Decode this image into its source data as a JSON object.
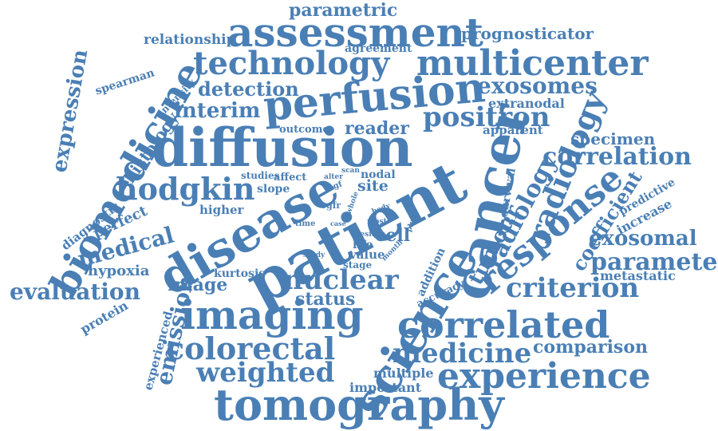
{
  "style": {
    "text_color": "#4a7fb5",
    "background": "#ffffff"
  },
  "words": [
    "parametric",
    "assessment",
    "prognosticator",
    "relationship",
    "agreement",
    "technology",
    "multicenter",
    "spearman",
    "intensity",
    "expression",
    "detection",
    "exosomes",
    "biomedicine",
    "perfusion",
    "interim",
    "extranodal",
    "positron",
    "radiology",
    "reader",
    "outcome",
    "apparent",
    "diffusion",
    "histology",
    "specimen",
    "correlation",
    "cancer",
    "hodgkin",
    "studies",
    "affect",
    "alter",
    "scan",
    "nodal",
    "site",
    "vegf",
    "slope",
    "survival",
    "whole",
    "radiology",
    "predictive",
    "diagnostic",
    "disease",
    "patient",
    "higher",
    "egfr",
    "body",
    "coefficient",
    "increase",
    "perfect",
    "medical",
    "time",
    "case",
    "lesion",
    "most",
    "plus",
    "tumour",
    "response",
    "exosomal",
    "cell",
    "life",
    "month",
    "value",
    "study",
    "stage",
    "addition",
    "parameter",
    "hypoxia",
    "kurtosis",
    "image",
    "nuclear",
    "metastatic",
    "evaluation",
    "accuracy",
    "criterion",
    "protein",
    "status",
    "emission",
    "imaging",
    "science",
    "correlated",
    "experienced",
    "colorectal",
    "medicine",
    "comparison",
    "multiple",
    "weighted",
    "experience",
    "important",
    "tomography"
  ]
}
